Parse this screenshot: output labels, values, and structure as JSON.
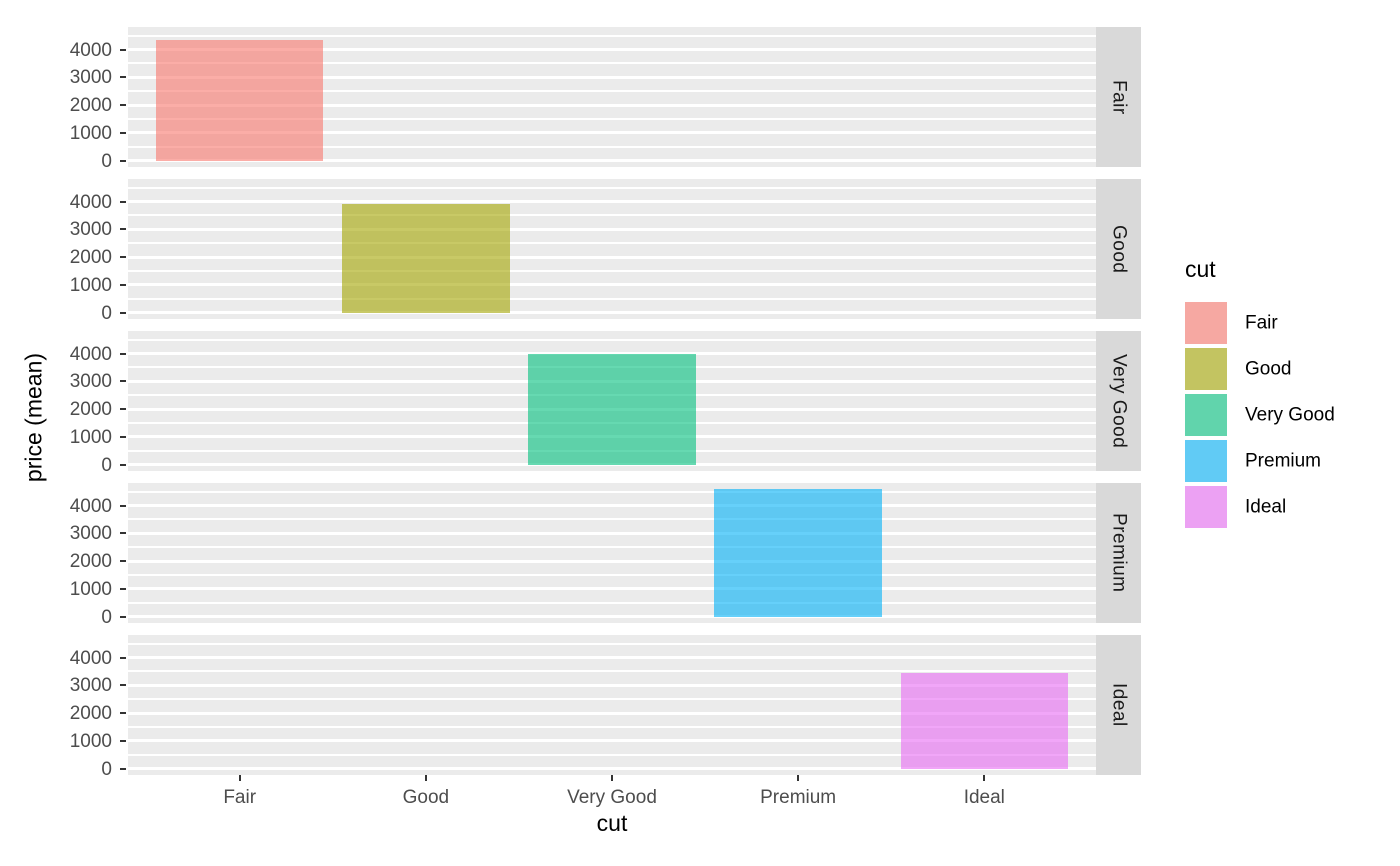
{
  "chart_data": {
    "type": "bar",
    "faceted": true,
    "facet_variable": "cut",
    "facet_layout": "rows",
    "facet_labels": [
      "Fair",
      "Good",
      "Very Good",
      "Premium",
      "Ideal"
    ],
    "categories": [
      "Fair",
      "Good",
      "Very Good",
      "Premium",
      "Ideal"
    ],
    "values": [
      4358.76,
      3928.86,
      3981.76,
      4584.26,
      3457.54
    ],
    "note": "each facet row shows only the single bar belonging to its own cut category",
    "title": "",
    "xlabel": "cut",
    "ylabel": "price (mean)",
    "ylim": [
      -229.2,
      4813.5
    ],
    "yticks": [
      0,
      1000,
      2000,
      3000,
      4000
    ],
    "yticks_minor": [
      500,
      1500,
      2500,
      3500,
      4500
    ],
    "x_domain": [
      0.4,
      5.6
    ],
    "bar_width_fraction": 0.9,
    "grid": true,
    "legend_position": "right",
    "bar_base_colors": [
      "#F8766D",
      "#A3A500",
      "#00BF7D",
      "#00B0F6",
      "#E76BF3"
    ],
    "bar_alpha": 0.6
  },
  "axes": {
    "x_title": "cut",
    "y_title": "price (mean)",
    "x_tick_labels": [
      "Fair",
      "Good",
      "Very Good",
      "Premium",
      "Ideal"
    ],
    "y_tick_labels": [
      "0",
      "1000",
      "2000",
      "3000",
      "4000"
    ]
  },
  "legend": {
    "title": "cut",
    "items": [
      {
        "label": "Fair",
        "color": "#F8766D"
      },
      {
        "label": "Good",
        "color": "#A3A500"
      },
      {
        "label": "Very Good",
        "color": "#00BF7D"
      },
      {
        "label": "Premium",
        "color": "#00B0F6"
      },
      {
        "label": "Ideal",
        "color": "#E76BF3"
      }
    ]
  },
  "theme": {
    "panel_bg": "#EBEBEB",
    "strip_bg": "#D9D9D9",
    "grid_color": "#FFFFFF",
    "axis_text_color": "#4D4D4D",
    "strip_text_color": "#1A1A1A",
    "title_text_color": "#000000",
    "tick_mark_color": "#333333",
    "legend_key_bg": "#F2F2F2"
  }
}
